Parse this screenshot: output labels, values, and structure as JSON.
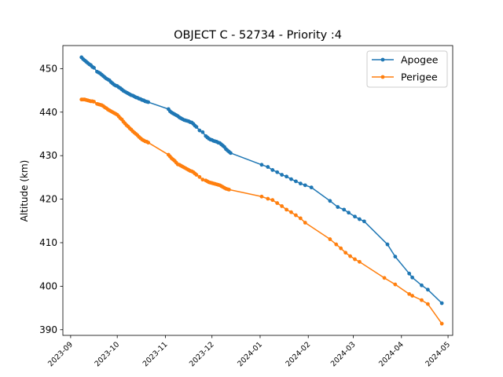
{
  "chart_data": {
    "type": "line",
    "title": "OBJECT C - 52734 - Priority :4",
    "xlabel": "",
    "ylabel": "Altitude (km)",
    "xlim": [
      "2023-08-27",
      "2024-05-04"
    ],
    "ylim": [
      388.7,
      455.3
    ],
    "x_ticks": [
      "2023-09",
      "2023-10",
      "2023-11",
      "2023-12",
      "2024-01",
      "2024-02",
      "2024-03",
      "2024-04",
      "2024-05"
    ],
    "y_ticks": [
      390,
      400,
      410,
      420,
      430,
      440,
      450
    ],
    "grid": false,
    "legend_position": "top-right",
    "series": [
      {
        "name": "Apogee",
        "color": "#1f77b4",
        "points": [
          [
            "2023-09-08",
            452.6
          ],
          [
            "2023-09-09",
            452.2
          ],
          [
            "2023-09-10",
            451.9
          ],
          [
            "2023-09-11",
            451.6
          ],
          [
            "2023-09-12",
            451.3
          ],
          [
            "2023-09-13",
            451.0
          ],
          [
            "2023-09-14",
            450.8
          ],
          [
            "2023-09-15",
            450.4
          ],
          [
            "2023-09-16",
            450.2
          ],
          [
            "2023-09-18",
            449.3
          ],
          [
            "2023-09-19",
            449.1
          ],
          [
            "2023-09-20",
            448.9
          ],
          [
            "2023-09-21",
            448.6
          ],
          [
            "2023-09-22",
            448.3
          ],
          [
            "2023-09-23",
            448.0
          ],
          [
            "2023-09-24",
            447.7
          ],
          [
            "2023-09-25",
            447.5
          ],
          [
            "2023-09-26",
            447.3
          ],
          [
            "2023-09-27",
            446.9
          ],
          [
            "2023-09-28",
            446.6
          ],
          [
            "2023-09-29",
            446.3
          ],
          [
            "2023-09-30",
            446.1
          ],
          [
            "2023-10-01",
            446.0
          ],
          [
            "2023-10-02",
            445.7
          ],
          [
            "2023-10-03",
            445.5
          ],
          [
            "2023-10-04",
            445.2
          ],
          [
            "2023-10-05",
            444.9
          ],
          [
            "2023-10-06",
            444.7
          ],
          [
            "2023-10-07",
            444.5
          ],
          [
            "2023-10-08",
            444.3
          ],
          [
            "2023-10-09",
            444.1
          ],
          [
            "2023-10-10",
            443.9
          ],
          [
            "2023-10-11",
            443.8
          ],
          [
            "2023-10-12",
            443.6
          ],
          [
            "2023-10-13",
            443.4
          ],
          [
            "2023-10-14",
            443.3
          ],
          [
            "2023-10-15",
            443.1
          ],
          [
            "2023-10-16",
            443.0
          ],
          [
            "2023-10-17",
            442.8
          ],
          [
            "2023-10-18",
            442.7
          ],
          [
            "2023-10-19",
            442.5
          ],
          [
            "2023-10-20",
            442.4
          ],
          [
            "2023-10-21",
            442.3
          ],
          [
            "2023-11-03",
            440.7
          ],
          [
            "2023-11-04",
            440.2
          ],
          [
            "2023-11-05",
            439.9
          ],
          [
            "2023-11-06",
            439.7
          ],
          [
            "2023-11-07",
            439.5
          ],
          [
            "2023-11-08",
            439.3
          ],
          [
            "2023-11-09",
            439.1
          ],
          [
            "2023-11-10",
            438.8
          ],
          [
            "2023-11-11",
            438.6
          ],
          [
            "2023-11-12",
            438.4
          ],
          [
            "2023-11-13",
            438.2
          ],
          [
            "2023-11-14",
            438.1
          ],
          [
            "2023-11-15",
            438.0
          ],
          [
            "2023-11-16",
            437.9
          ],
          [
            "2023-11-17",
            437.7
          ],
          [
            "2023-11-18",
            437.6
          ],
          [
            "2023-11-19",
            437.3
          ],
          [
            "2023-11-20",
            436.9
          ],
          [
            "2023-11-21",
            436.6
          ],
          [
            "2023-11-23",
            435.8
          ],
          [
            "2023-11-25",
            435.4
          ],
          [
            "2023-11-27",
            434.5
          ],
          [
            "2023-11-28",
            434.2
          ],
          [
            "2023-11-29",
            433.9
          ],
          [
            "2023-11-30",
            433.7
          ],
          [
            "2023-12-01",
            433.6
          ],
          [
            "2023-12-02",
            433.4
          ],
          [
            "2023-12-03",
            433.3
          ],
          [
            "2023-12-04",
            433.2
          ],
          [
            "2023-12-05",
            433.0
          ],
          [
            "2023-12-06",
            432.9
          ],
          [
            "2023-12-07",
            432.6
          ],
          [
            "2023-12-08",
            432.3
          ],
          [
            "2023-12-09",
            432.0
          ],
          [
            "2023-12-10",
            431.5
          ],
          [
            "2023-12-11",
            431.2
          ],
          [
            "2023-12-12",
            430.9
          ],
          [
            "2023-12-13",
            430.6
          ],
          [
            "2024-01-02",
            427.9
          ],
          [
            "2024-01-06",
            427.4
          ],
          [
            "2024-01-09",
            426.7
          ],
          [
            "2024-01-12",
            426.2
          ],
          [
            "2024-01-15",
            425.6
          ],
          [
            "2024-01-18",
            425.2
          ],
          [
            "2024-01-21",
            424.6
          ],
          [
            "2024-01-24",
            424.1
          ],
          [
            "2024-01-27",
            423.6
          ],
          [
            "2024-01-30",
            423.2
          ],
          [
            "2024-02-03",
            422.7
          ],
          [
            "2024-02-15",
            419.6
          ],
          [
            "2024-02-20",
            418.2
          ],
          [
            "2024-02-24",
            417.6
          ],
          [
            "2024-02-27",
            416.9
          ],
          [
            "2024-03-02",
            416.0
          ],
          [
            "2024-03-05",
            415.4
          ],
          [
            "2024-03-08",
            414.9
          ],
          [
            "2024-03-23",
            409.6
          ],
          [
            "2024-03-28",
            406.8
          ],
          [
            "2024-04-06",
            402.9
          ],
          [
            "2024-04-08",
            402.0
          ],
          [
            "2024-04-14",
            400.2
          ],
          [
            "2024-04-18",
            399.2
          ],
          [
            "2024-04-27",
            396.1
          ]
        ]
      },
      {
        "name": "Perigee",
        "color": "#ff7f0e",
        "points": [
          [
            "2023-09-08",
            442.9
          ],
          [
            "2023-09-09",
            442.9
          ],
          [
            "2023-09-10",
            442.9
          ],
          [
            "2023-09-11",
            442.8
          ],
          [
            "2023-09-12",
            442.7
          ],
          [
            "2023-09-13",
            442.6
          ],
          [
            "2023-09-14",
            442.5
          ],
          [
            "2023-09-15",
            442.5
          ],
          [
            "2023-09-16",
            442.4
          ],
          [
            "2023-09-18",
            441.9
          ],
          [
            "2023-09-19",
            441.8
          ],
          [
            "2023-09-20",
            441.7
          ],
          [
            "2023-09-21",
            441.6
          ],
          [
            "2023-09-22",
            441.4
          ],
          [
            "2023-09-23",
            441.1
          ],
          [
            "2023-09-24",
            440.9
          ],
          [
            "2023-09-25",
            440.6
          ],
          [
            "2023-09-26",
            440.4
          ],
          [
            "2023-09-27",
            440.2
          ],
          [
            "2023-09-28",
            440.0
          ],
          [
            "2023-09-29",
            439.8
          ],
          [
            "2023-09-30",
            439.6
          ],
          [
            "2023-10-01",
            439.4
          ],
          [
            "2023-10-02",
            439.0
          ],
          [
            "2023-10-03",
            438.6
          ],
          [
            "2023-10-04",
            438.3
          ],
          [
            "2023-10-05",
            437.8
          ],
          [
            "2023-10-06",
            437.4
          ],
          [
            "2023-10-07",
            437.0
          ],
          [
            "2023-10-08",
            436.7
          ],
          [
            "2023-10-09",
            436.3
          ],
          [
            "2023-10-10",
            436.0
          ],
          [
            "2023-10-11",
            435.6
          ],
          [
            "2023-10-12",
            435.3
          ],
          [
            "2023-10-13",
            435.0
          ],
          [
            "2023-10-14",
            434.7
          ],
          [
            "2023-10-15",
            434.3
          ],
          [
            "2023-10-16",
            434.0
          ],
          [
            "2023-10-17",
            433.7
          ],
          [
            "2023-10-18",
            433.5
          ],
          [
            "2023-10-19",
            433.3
          ],
          [
            "2023-10-20",
            433.2
          ],
          [
            "2023-10-21",
            433.0
          ],
          [
            "2023-11-03",
            430.2
          ],
          [
            "2023-11-04",
            429.8
          ],
          [
            "2023-11-05",
            429.4
          ],
          [
            "2023-11-06",
            429.1
          ],
          [
            "2023-11-07",
            428.8
          ],
          [
            "2023-11-08",
            428.4
          ],
          [
            "2023-11-09",
            428.0
          ],
          [
            "2023-11-10",
            427.9
          ],
          [
            "2023-11-11",
            427.7
          ],
          [
            "2023-11-12",
            427.5
          ],
          [
            "2023-11-13",
            427.3
          ],
          [
            "2023-11-14",
            427.1
          ],
          [
            "2023-11-15",
            426.9
          ],
          [
            "2023-11-16",
            426.7
          ],
          [
            "2023-11-17",
            426.5
          ],
          [
            "2023-11-18",
            426.4
          ],
          [
            "2023-11-19",
            426.2
          ],
          [
            "2023-11-20",
            425.9
          ],
          [
            "2023-11-21",
            425.6
          ],
          [
            "2023-11-23",
            425.1
          ],
          [
            "2023-11-25",
            424.5
          ],
          [
            "2023-11-27",
            424.3
          ],
          [
            "2023-11-28",
            424.1
          ],
          [
            "2023-11-29",
            423.9
          ],
          [
            "2023-11-30",
            423.8
          ],
          [
            "2023-12-01",
            423.7
          ],
          [
            "2023-12-02",
            423.6
          ],
          [
            "2023-12-03",
            423.5
          ],
          [
            "2023-12-04",
            423.4
          ],
          [
            "2023-12-05",
            423.3
          ],
          [
            "2023-12-06",
            423.2
          ],
          [
            "2023-12-07",
            423.0
          ],
          [
            "2023-12-08",
            422.8
          ],
          [
            "2023-12-09",
            422.6
          ],
          [
            "2023-12-10",
            422.4
          ],
          [
            "2023-12-11",
            422.3
          ],
          [
            "2023-12-12",
            422.2
          ],
          [
            "2024-01-02",
            420.6
          ],
          [
            "2024-01-06",
            420.1
          ],
          [
            "2024-01-09",
            419.8
          ],
          [
            "2024-01-12",
            419.1
          ],
          [
            "2024-01-15",
            418.4
          ],
          [
            "2024-01-18",
            417.6
          ],
          [
            "2024-01-21",
            417.0
          ],
          [
            "2024-01-24",
            416.3
          ],
          [
            "2024-01-27",
            415.6
          ],
          [
            "2024-01-30",
            414.6
          ],
          [
            "2024-02-15",
            410.8
          ],
          [
            "2024-02-19",
            409.6
          ],
          [
            "2024-02-22",
            408.7
          ],
          [
            "2024-02-25",
            407.7
          ],
          [
            "2024-02-28",
            406.9
          ],
          [
            "2024-03-02",
            406.2
          ],
          [
            "2024-03-05",
            405.6
          ],
          [
            "2024-03-21",
            401.9
          ],
          [
            "2024-03-28",
            400.4
          ],
          [
            "2024-04-06",
            398.2
          ],
          [
            "2024-04-08",
            397.8
          ],
          [
            "2024-04-14",
            396.8
          ],
          [
            "2024-04-18",
            395.9
          ],
          [
            "2024-04-27",
            391.4
          ]
        ]
      }
    ]
  }
}
